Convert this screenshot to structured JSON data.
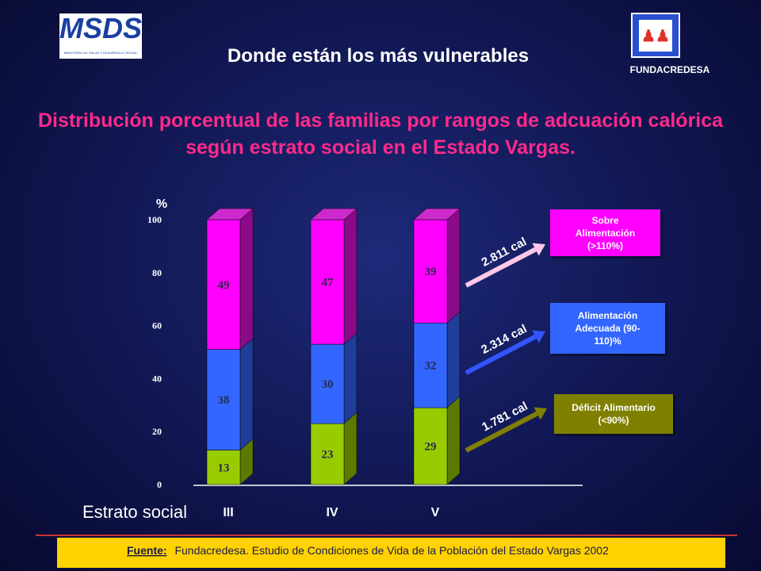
{
  "header": {
    "title": "Donde están los más vulnerables",
    "logo_left": "MSDS",
    "logo_left_caption": "MINISTERIO DE SALUD Y DESARROLLO SOCIAL",
    "logo_right_caption": "FUNDACREDESA"
  },
  "chart_data": {
    "type": "bar",
    "stacked": true,
    "title": "Distribución porcentual de  las familias por rangos de adcuación calórica según estrato social en el Estado Vargas.",
    "y_label": "%",
    "x_label": "Estrato social",
    "categories": [
      "III",
      "IV",
      "V"
    ],
    "series": [
      {
        "name": "Déficit Alimentario (<90%)",
        "color": "#99cc00",
        "side_color": "#5c7a00",
        "box_color": "#808000",
        "arrow_label": "1.781 cal",
        "values": [
          13,
          23,
          29
        ]
      },
      {
        "name": "Alimentación Adecuada (90-110)%",
        "color": "#3366ff",
        "side_color": "#1f3d99",
        "box_color": "#3366ff",
        "arrow_label": "2.314 cal",
        "values": [
          38,
          30,
          32
        ]
      },
      {
        "name": "Sobre Alimentación (>110%)",
        "color": "#ff00ff",
        "side_color": "#8a0a8a",
        "box_color": "#ff00ff",
        "arrow_label": "2.811 cal",
        "values": [
          49,
          47,
          39
        ]
      }
    ],
    "ylim": [
      0,
      100
    ],
    "yticks": [
      0,
      20,
      40,
      60,
      80,
      100
    ],
    "grid": false
  },
  "footer": {
    "source_label": "Fuente:",
    "source_text": "Fundacredesa. Estudio de Condiciones de Vida de la Población del Estado Vargas 2002"
  }
}
